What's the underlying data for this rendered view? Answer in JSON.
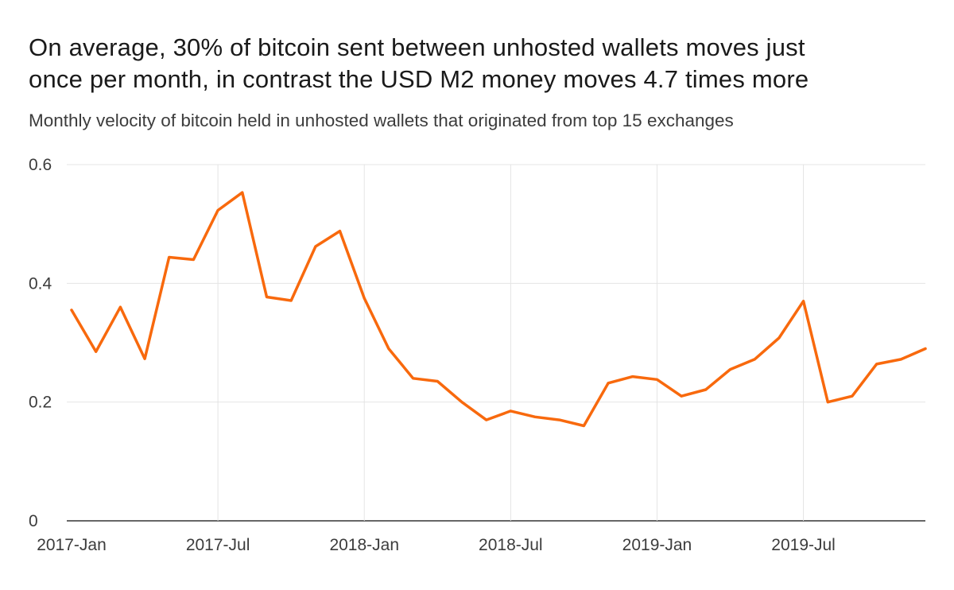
{
  "page": {
    "title_lines": [
      "On average, 30% of bitcoin sent between unhosted wallets moves just",
      "once per month, in contrast the USD M2 money moves 4.7 times more"
    ],
    "subtitle": "Monthly velocity of bitcoin held in unhosted wallets that originated from top 15 exchanges"
  },
  "chart_data": {
    "type": "line",
    "title": "On average, 30% of bitcoin sent between unhosted wallets moves just once per month, in contrast the USD M2 money moves 4.7 times more",
    "subtitle": "Monthly velocity of bitcoin held in unhosted wallets that originated from top 15 exchanges",
    "x": [
      "2017-Jan",
      "2017-Feb",
      "2017-Mar",
      "2017-Apr",
      "2017-May",
      "2017-Jun",
      "2017-Jul",
      "2017-Aug",
      "2017-Sep",
      "2017-Oct",
      "2017-Nov",
      "2017-Dec",
      "2018-Jan",
      "2018-Feb",
      "2018-Mar",
      "2018-Apr",
      "2018-May",
      "2018-Jun",
      "2018-Jul",
      "2018-Aug",
      "2018-Sep",
      "2018-Oct",
      "2018-Nov",
      "2018-Dec",
      "2019-Jan",
      "2019-Feb",
      "2019-Mar",
      "2019-Apr",
      "2019-May",
      "2019-Jun",
      "2019-Jul",
      "2019-Aug",
      "2019-Sep",
      "2019-Oct",
      "2019-Nov",
      "2019-Dec"
    ],
    "x_tick_labels": [
      "2017-Jan",
      "2017-Jul",
      "2018-Jan",
      "2018-Jul",
      "2019-Jan",
      "2019-Jul"
    ],
    "x_tick_month_indices": [
      0,
      6,
      12,
      18,
      24,
      30
    ],
    "y_ticks": [
      0,
      0.2,
      0.4,
      0.6
    ],
    "ylim": [
      0,
      0.6
    ],
    "grid": true,
    "legend": "none",
    "line_color": "#F8690D",
    "gridline_color": "#e4e4e4",
    "axis_line_color": "#333333",
    "tick_label_color": "#3c3c3c",
    "series": [
      {
        "name": "Monthly velocity",
        "color": "#F8690D",
        "values": [
          0.355,
          0.285,
          0.36,
          0.273,
          0.444,
          0.44,
          0.523,
          0.553,
          0.377,
          0.371,
          0.462,
          0.488,
          0.375,
          0.29,
          0.24,
          0.235,
          0.2,
          0.17,
          0.185,
          0.175,
          0.17,
          0.16,
          0.232,
          0.243,
          0.238,
          0.21,
          0.221,
          0.255,
          0.272,
          0.308,
          0.37,
          0.2,
          0.21,
          0.264,
          0.272,
          0.29
        ]
      }
    ]
  }
}
